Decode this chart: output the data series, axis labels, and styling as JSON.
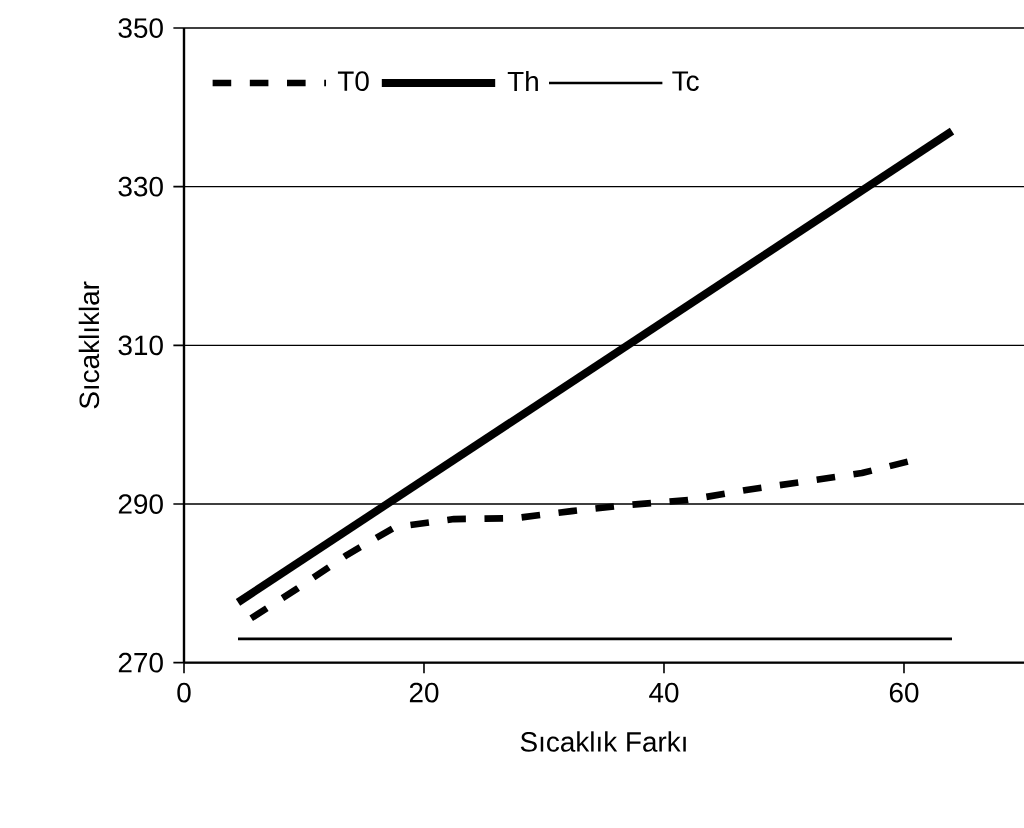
{
  "chart_data": {
    "type": "line",
    "xlabel": "Sıcaklık Farkı",
    "ylabel": "Sıcaklıklar",
    "xlim": [
      0,
      70
    ],
    "xticks": [
      0,
      20,
      40,
      60
    ],
    "ylim": [
      270,
      350
    ],
    "yticks": [
      270,
      290,
      310,
      330,
      350
    ],
    "grid": "y",
    "legend": "top left",
    "marker": "none",
    "series": [
      {
        "name": "T0",
        "color": "#000000",
        "line_style": "dashed",
        "x": [
          5.6,
          9.5,
          13.6,
          17.6,
          22.5,
          27.5,
          32.3,
          37.2,
          42,
          47,
          51.6,
          56.5,
          61
        ],
        "values": [
          275.6,
          279.4,
          283.6,
          287.1,
          288.1,
          288.2,
          289.1,
          289.9,
          290.5,
          291.8,
          292.8,
          293.9,
          295.6
        ]
      },
      {
        "name": "Th",
        "color": "#000000",
        "line_style": "solid",
        "x": [
          4.5,
          64
        ],
        "values": [
          277.6,
          337
        ]
      },
      {
        "name": "Tc",
        "color": "#000000",
        "line_style": "solid",
        "x": [
          4.5,
          64
        ],
        "values": [
          273,
          273
        ]
      }
    ]
  }
}
